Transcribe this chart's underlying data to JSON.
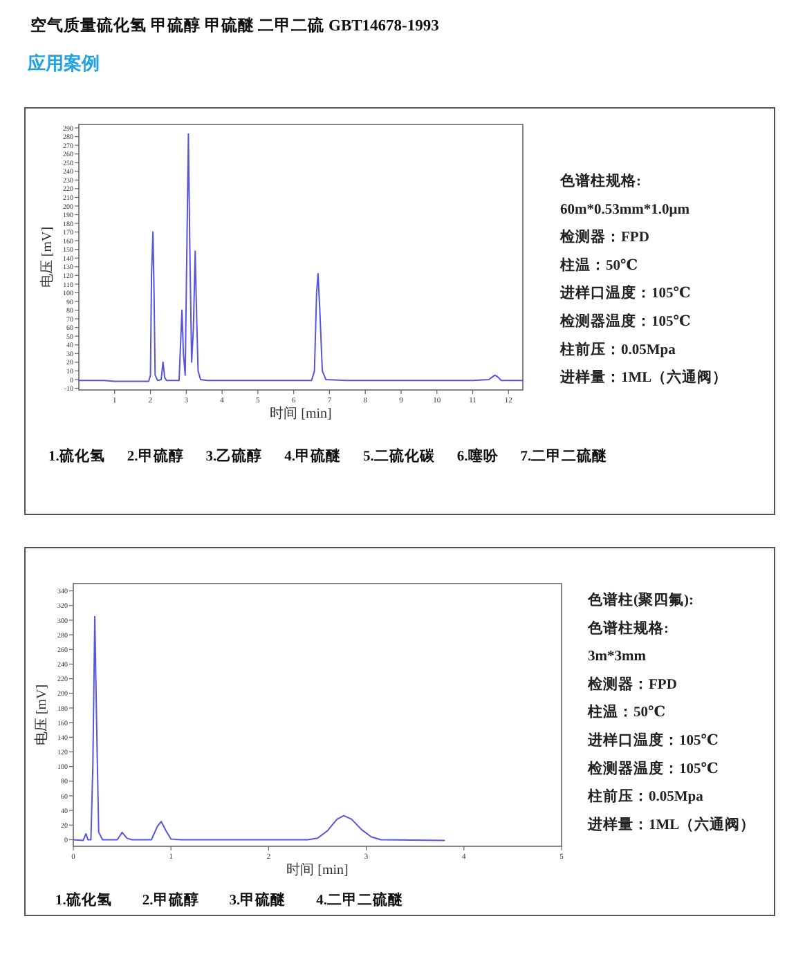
{
  "chart_data": [
    {
      "type": "line",
      "title": "空气质量硫化氢 甲硫醇 甲硫醚 二甲二硫   GBT14678-1993",
      "subtitle": "应用案例",
      "xlabel": "时间 [min]",
      "ylabel": "电压 [mV]",
      "xlim": [
        0,
        12.4
      ],
      "ylim": [
        -12,
        294
      ],
      "xticks": [
        1,
        2,
        3,
        4,
        5,
        6,
        7,
        8,
        9,
        10,
        11,
        12
      ],
      "yticks": [
        -10,
        0,
        10,
        20,
        30,
        40,
        50,
        60,
        70,
        80,
        90,
        100,
        110,
        120,
        130,
        140,
        150,
        160,
        170,
        180,
        190,
        200,
        210,
        220,
        230,
        240,
        250,
        260,
        270,
        280,
        290
      ],
      "series": [
        {
          "color": "#5555dd",
          "x": [
            0,
            0.7,
            1.0,
            1.95,
            2.0,
            2.03,
            2.07,
            2.1,
            2.13,
            2.2,
            2.3,
            2.35,
            2.4,
            2.45,
            2.8,
            2.84,
            2.88,
            2.92,
            2.97,
            3.02,
            3.06,
            3.1,
            3.15,
            3.2,
            3.25,
            3.28,
            3.33,
            3.4,
            3.6,
            4.2,
            5,
            6.5,
            6.58,
            6.64,
            6.68,
            6.73,
            6.8,
            6.9,
            7.5,
            9,
            11,
            11.45,
            11.55,
            11.62,
            11.7,
            11.8,
            12.4
          ],
          "values": [
            -1,
            -1,
            -2,
            -2,
            5,
            120,
            170,
            100,
            5,
            -1,
            0,
            20,
            2,
            -1,
            -1,
            40,
            80,
            30,
            5,
            160,
            283,
            150,
            20,
            60,
            148,
            90,
            10,
            0,
            -1,
            -1,
            -1,
            -1,
            10,
            100,
            122,
            80,
            10,
            0,
            -1,
            -1,
            -1,
            0,
            3,
            5,
            3,
            -1,
            -1
          ]
        }
      ],
      "annotations": [
        "1.硫化氢",
        "2.甲硫醇",
        "3.乙硫醇",
        "4.甲硫醚",
        "5.二硫化碳",
        "6.噻吩",
        "7.二甲二硫醚"
      ]
    },
    {
      "type": "other",
      "annotations": [
        "色谱柱规格:",
        "60m*0.53mm*1.0μm",
        "检测器：FPD",
        "柱温：50℃",
        "进样口温度：105℃",
        "检测器温度：105℃",
        "柱前压：0.05Mpa",
        "进样量：1ML（六通阀）"
      ]
    },
    {
      "type": "line",
      "xlabel": "时间 [min]",
      "ylabel": "电压 [mV]",
      "xlim": [
        0,
        5
      ],
      "ylim": [
        -9,
        350
      ],
      "xticks": [
        0,
        1,
        2,
        3,
        4,
        5
      ],
      "yticks": [
        0,
        20,
        40,
        60,
        80,
        100,
        120,
        140,
        160,
        180,
        200,
        220,
        240,
        260,
        280,
        300,
        320,
        340
      ],
      "series": [
        {
          "color": "#5555dd",
          "x": [
            0,
            0.1,
            0.13,
            0.15,
            0.18,
            0.2,
            0.22,
            0.24,
            0.26,
            0.3,
            0.45,
            0.5,
            0.55,
            0.6,
            0.8,
            0.86,
            0.9,
            0.95,
            1.0,
            1.1,
            1.6,
            2.4,
            2.5,
            2.6,
            2.7,
            2.77,
            2.85,
            2.95,
            3.05,
            3.15,
            3.8
          ],
          "values": [
            0,
            -1,
            8,
            0,
            0,
            100,
            305,
            150,
            10,
            0,
            0,
            10,
            2,
            0,
            0,
            18,
            25,
            12,
            1,
            0,
            0,
            0,
            2,
            12,
            28,
            33,
            28,
            14,
            4,
            0,
            -1
          ]
        }
      ],
      "annotations": [
        "1.硫化氢",
        "2.甲硫醇",
        "3.甲硫醚",
        "4.二甲二硫醚"
      ]
    },
    {
      "type": "other",
      "annotations": [
        "色谱柱(聚四氟):",
        "色谱柱规格:",
        "3m*3mm",
        "检测器：FPD",
        "柱温：50℃",
        "进样口温度：105℃",
        "检测器温度：105℃",
        "柱前压：0.05Mpa",
        "进样量：1ML（六通阀）"
      ]
    }
  ]
}
